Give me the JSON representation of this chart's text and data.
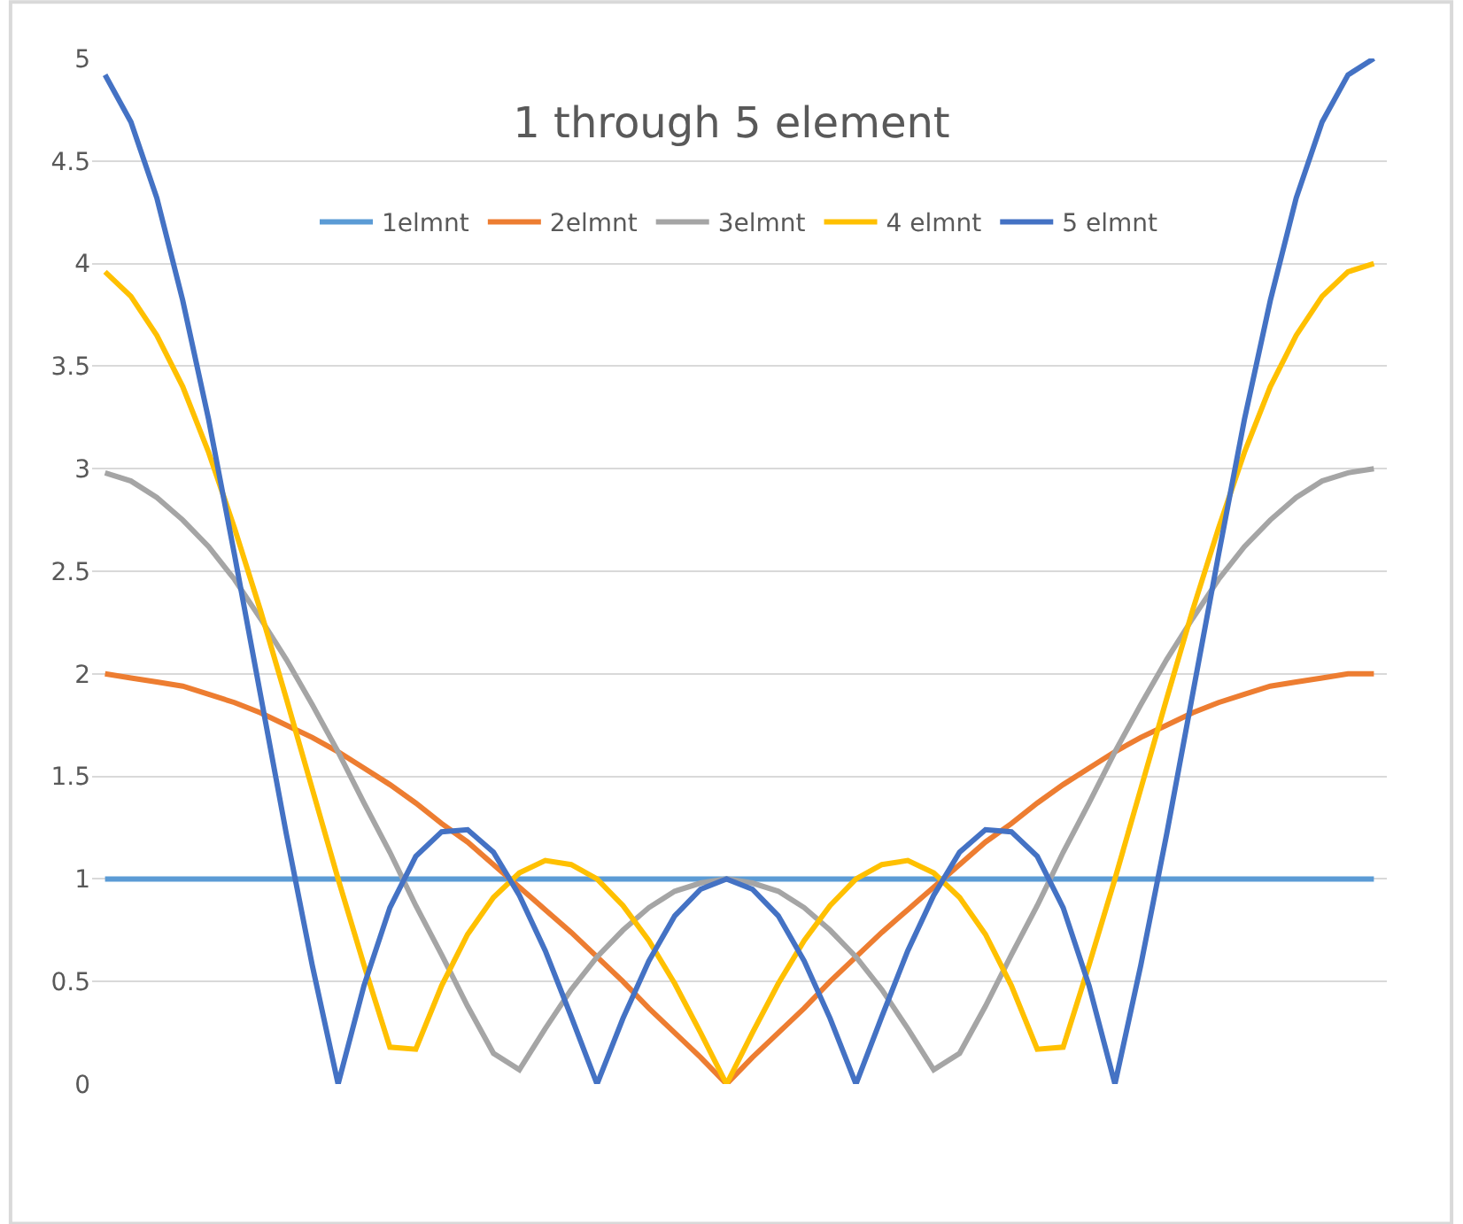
{
  "chart_data": {
    "type": "line",
    "title": "1 through 5 element",
    "categories": [
      null,
      null,
      null,
      null,
      null,
      null,
      null,
      null,
      null,
      null,
      null,
      null,
      null,
      null,
      null,
      null,
      null,
      null,
      null,
      null,
      null,
      null,
      null,
      null,
      null,
      null,
      null,
      null,
      null,
      null,
      null,
      null,
      null,
      null,
      null,
      null,
      null,
      null,
      null,
      null,
      null,
      null,
      null,
      null,
      null,
      null,
      null,
      null,
      null,
      null
    ],
    "series": [
      {
        "name": "1elmnt",
        "color": "#5b9bd5",
        "values": [
          1,
          1,
          1,
          1,
          1,
          1,
          1,
          1,
          1,
          1,
          1,
          1,
          1,
          1,
          1,
          1,
          1,
          1,
          1,
          1,
          1,
          1,
          1,
          1,
          1,
          1,
          1,
          1,
          1,
          1,
          1,
          1,
          1,
          1,
          1,
          1,
          1,
          1,
          1,
          1,
          1,
          1,
          1,
          1,
          1,
          1,
          1,
          1,
          1,
          1
        ]
      },
      {
        "name": "2elmnt",
        "color": "#ed7d31",
        "values": [
          2.0,
          1.98,
          1.96,
          1.94,
          1.9,
          1.86,
          1.81,
          1.75,
          1.69,
          1.62,
          1.54,
          1.46,
          1.37,
          1.27,
          1.18,
          1.07,
          0.96,
          0.85,
          0.74,
          0.62,
          0.5,
          0.37,
          0.25,
          0.13,
          0.0,
          0.13,
          0.25,
          0.37,
          0.5,
          0.62,
          0.74,
          0.85,
          0.96,
          1.07,
          1.18,
          1.27,
          1.37,
          1.46,
          1.54,
          1.62,
          1.69,
          1.75,
          1.81,
          1.86,
          1.9,
          1.94,
          1.96,
          1.98,
          2.0,
          2
        ]
      },
      {
        "name": "3elmnt",
        "color": "#a5a5a5",
        "values": [
          2.98,
          2.94,
          2.86,
          2.75,
          2.62,
          2.46,
          2.27,
          2.07,
          1.85,
          1.62,
          1.37,
          1.13,
          0.87,
          0.63,
          0.38,
          0.15,
          0.07,
          0.27,
          0.46,
          0.62,
          0.75,
          0.86,
          0.94,
          0.98,
          1.0,
          0.98,
          0.94,
          0.86,
          0.75,
          0.62,
          0.46,
          0.27,
          0.07,
          0.15,
          0.38,
          0.63,
          0.87,
          1.13,
          1.37,
          1.62,
          1.85,
          2.07,
          2.27,
          2.46,
          2.62,
          2.75,
          2.86,
          2.94,
          2.98,
          3
        ]
      },
      {
        "name": "4 elmnt",
        "color": "#ffc000",
        "values": [
          3.96,
          3.84,
          3.65,
          3.4,
          3.08,
          2.71,
          2.31,
          1.88,
          1.44,
          1.0,
          0.58,
          0.18,
          0.17,
          0.48,
          0.73,
          0.91,
          1.03,
          1.09,
          1.07,
          1.0,
          0.87,
          0.7,
          0.49,
          0.25,
          0.0,
          0.25,
          0.49,
          0.7,
          0.87,
          1.0,
          1.07,
          1.09,
          1.03,
          0.91,
          0.73,
          0.48,
          0.17,
          0.18,
          0.58,
          1.0,
          1.44,
          1.88,
          2.31,
          2.71,
          3.08,
          3.4,
          3.65,
          3.84,
          3.96,
          4
        ]
      },
      {
        "name": "5 elmnt",
        "color": "#4472c4",
        "values": [
          4.92,
          4.69,
          4.32,
          3.82,
          3.24,
          2.58,
          1.9,
          1.22,
          0.58,
          0.0,
          0.48,
          0.86,
          1.11,
          1.23,
          1.24,
          1.13,
          0.92,
          0.65,
          0.33,
          0.0,
          0.32,
          0.6,
          0.82,
          0.95,
          1.0,
          0.95,
          0.82,
          0.6,
          0.32,
          0.0,
          0.33,
          0.65,
          0.92,
          1.13,
          1.24,
          1.23,
          1.11,
          0.86,
          0.48,
          0.0,
          0.58,
          1.22,
          1.9,
          2.58,
          3.24,
          3.82,
          4.32,
          4.69,
          4.92,
          5
        ]
      }
    ],
    "ylim": [
      0,
      5
    ],
    "yticks": [
      0,
      0.5,
      1,
      1.5,
      2,
      2.5,
      3,
      3.5,
      4,
      4.5,
      5
    ],
    "grid": "y",
    "legend": "top",
    "tick_labels": "y",
    "marker": "none",
    "line_style": "solid"
  }
}
